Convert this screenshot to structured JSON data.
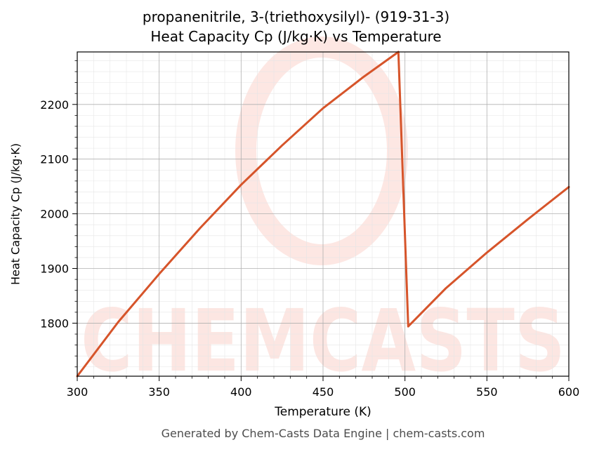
{
  "chart_data": {
    "type": "line",
    "title": "propanenitrile, 3-(triethoxysilyl)- (919-31-3)",
    "subtitle": "Heat Capacity Cp (J/kg·K) vs Temperature",
    "xlabel": "Temperature (K)",
    "ylabel": "Heat Capacity Cp (J/kg·K)",
    "xlim": [
      300,
      600
    ],
    "ylim": [
      1703,
      2296
    ],
    "xticks": [
      300,
      350,
      400,
      450,
      500,
      550,
      600
    ],
    "yticks": [
      1800,
      1900,
      2000,
      2100,
      2200
    ],
    "grid": true,
    "series": [
      {
        "color": "#d6542a",
        "x": [
          300,
          325,
          350,
          375,
          400,
          425,
          450,
          475,
          496,
          502,
          525,
          550,
          575,
          600
        ],
        "y": [
          1703,
          1802,
          1890,
          1974,
          2053,
          2125,
          2193,
          2251,
          2296,
          1794,
          1864,
          1929,
          1990,
          2049
        ]
      }
    ],
    "watermark": "CHEMCASTS"
  },
  "footer": "Generated by Chem-Casts Data Engine | chem-casts.com"
}
